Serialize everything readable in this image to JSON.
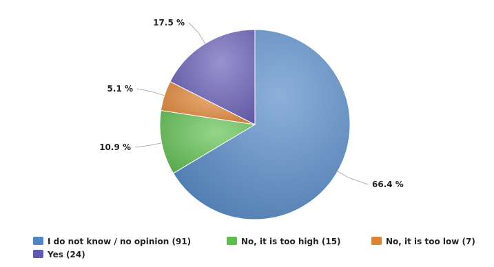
{
  "chart_data": {
    "type": "pie",
    "slices": [
      {
        "label": "I do not know / no opinion",
        "count": 91,
        "percent": 66.4,
        "percent_label": "66.4 %",
        "legend_label": "I do not know / no opinion (91)",
        "color": "#4f86c6"
      },
      {
        "label": "No, it is too high",
        "count": 15,
        "percent": 10.9,
        "percent_label": "10.9 %",
        "legend_label": "No, it is too high (15)",
        "color": "#5cbf4c"
      },
      {
        "label": "No, it is too low",
        "count": 7,
        "percent": 5.1,
        "percent_label": "5.1 %",
        "legend_label": "No, it is too low (7)",
        "color": "#e1822f"
      },
      {
        "label": "Yes",
        "count": 24,
        "percent": 17.5,
        "percent_label": "17.5 %",
        "legend_label": "Yes (24)",
        "color": "#6058b4"
      }
    ],
    "start_angle": "12 o'clock",
    "direction": "clockwise",
    "legend_position": "bottom-left",
    "title": ""
  }
}
